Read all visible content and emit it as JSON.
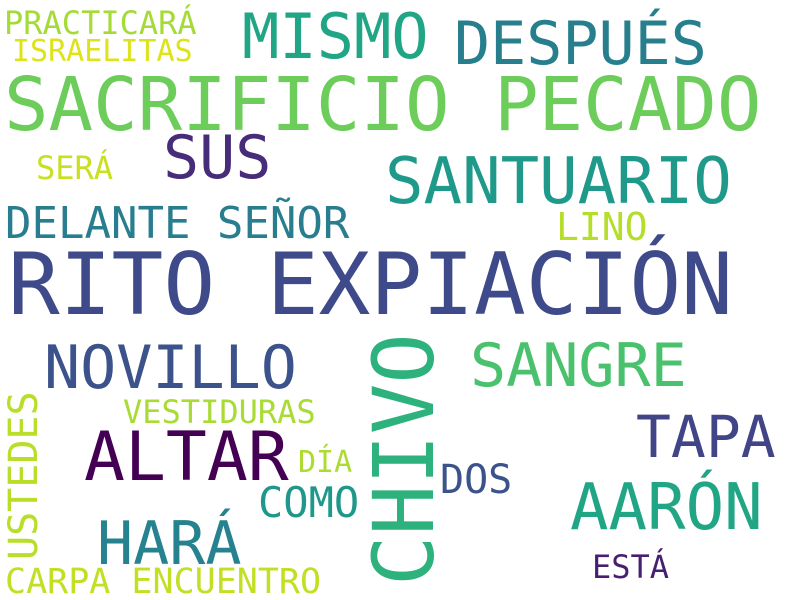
{
  "words": [
    {
      "text": "RITO EXPIACIÓN",
      "color": "#3e4a89"
    },
    {
      "text": "SACRIFICIO PECADO",
      "color": "#6ccd5a"
    },
    {
      "text": "CHIVO",
      "color": "#2db27d"
    },
    {
      "text": "SANTUARIO",
      "color": "#1f9a8a"
    },
    {
      "text": "DESPUÉS",
      "color": "#277f8e"
    },
    {
      "text": "MISMO",
      "color": "#21a685"
    },
    {
      "text": "ALTAR",
      "color": "#440154"
    },
    {
      "text": "NOVILLO",
      "color": "#3b528b"
    },
    {
      "text": "SANGRE",
      "color": "#4ac16d"
    },
    {
      "text": "AARÓN",
      "color": "#21a685"
    },
    {
      "text": "TAPA",
      "color": "#414487"
    },
    {
      "text": "HARÁ",
      "color": "#26828e"
    },
    {
      "text": "SUS",
      "color": "#472c7a"
    },
    {
      "text": "DELANTE SEÑOR",
      "color": "#287d8e"
    },
    {
      "text": "USTEDES",
      "color": "#b8de29"
    },
    {
      "text": "COMO",
      "color": "#1f988b"
    },
    {
      "text": "CARPA ENCUENTRO",
      "color": "#c2df23"
    },
    {
      "text": "PRACTICARÁ",
      "color": "#a5db36"
    },
    {
      "text": "ISRAELITAS",
      "color": "#dde318"
    },
    {
      "text": "VESTIDURAS",
      "color": "#a8db34"
    },
    {
      "text": "DOS",
      "color": "#3b528b"
    },
    {
      "text": "LINO",
      "color": "#b5de2b"
    },
    {
      "text": "SERÁ",
      "color": "#c8e020"
    },
    {
      "text": "DÍA",
      "color": "#addc30"
    },
    {
      "text": "ESTÁ",
      "color": "#481f70"
    }
  ]
}
